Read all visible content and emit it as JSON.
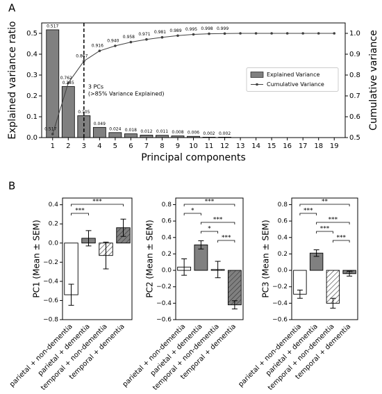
{
  "chart_data": [
    {
      "type": "combo",
      "panel_label": "A",
      "xlabel": "Principal components",
      "ylabel": "Explained variance ratio",
      "y2label": "Cumulative variance",
      "x": [
        1,
        2,
        3,
        4,
        5,
        6,
        7,
        8,
        9,
        10,
        11,
        12,
        13,
        14,
        15,
        16,
        17,
        18,
        19
      ],
      "xlim": [
        0.3,
        19.7
      ],
      "xticks": [
        1,
        2,
        3,
        4,
        5,
        6,
        7,
        8,
        9,
        10,
        11,
        12,
        13,
        14,
        15,
        16,
        17,
        18,
        19
      ],
      "ylim": [
        0,
        0.55
      ],
      "yticks": [
        {
          "value": 0,
          "label": "0.0"
        },
        0.1,
        0.2,
        0.3,
        0.4,
        0.5
      ],
      "y2lim": [
        0.5,
        1.05
      ],
      "y2ticks": [
        0.5,
        0.6,
        0.7,
        0.8,
        0.9,
        {
          "value": 1,
          "label": "1.0"
        }
      ],
      "vline_x": 3,
      "annotations": [
        "3 PCs",
        "(>85% Variance Explained)"
      ],
      "legend": "center right",
      "series": [
        {
          "name": "Explained Variance",
          "type": "bar",
          "color": "#808080",
          "values": [
            0.517,
            0.245,
            0.105,
            0.049,
            0.024,
            0.018,
            0.012,
            0.011,
            0.008,
            0.006,
            0.002,
            0.002,
            0,
            0,
            0,
            0,
            0,
            0,
            0
          ],
          "value_labels": [
            "0.517",
            "0.245",
            "0.105",
            "0.049",
            "0.024",
            "0.018",
            "0.012",
            "0.011",
            "0.008",
            "0.006",
            "0.002",
            "0.002",
            null,
            null,
            null,
            null,
            null,
            null,
            null
          ]
        },
        {
          "name": "Cumulative Variance",
          "type": "line",
          "axis": "y2",
          "color": "#404040",
          "values": [
            0.517,
            0.762,
            0.867,
            0.916,
            0.94,
            0.958,
            0.971,
            0.981,
            0.989,
            0.995,
            0.998,
            0.999,
            1,
            1,
            1,
            1,
            1,
            1,
            1
          ],
          "value_labels": [
            "0.517",
            "0.762",
            "0.867",
            "0.916",
            "0.940",
            "0.958",
            "0.971",
            "0.981",
            "0.989",
            "0.995",
            "0.998",
            "0.999",
            null,
            null,
            null,
            null,
            null,
            null,
            null
          ]
        }
      ]
    },
    {
      "type": "bar",
      "panel_label": "B",
      "ylabel": "PC1 (Mean ± SEM)",
      "categories": [
        "parietal + non-dementia",
        "parietal + dementia",
        "temporal + non-dementia",
        "temporal + dementia"
      ],
      "values": [
        -0.54,
        0.05,
        -0.13,
        0.16
      ],
      "errors": [
        0.11,
        0.08,
        0.14,
        0.09
      ],
      "colors": [
        "#ffffff",
        "#808080",
        "#ffffff",
        "#808080"
      ],
      "hatch": [
        false,
        false,
        true,
        true
      ],
      "ylim": [
        -0.8,
        0.47
      ],
      "yticks": [
        {
          "value": -0.8,
          "label": "−0.8"
        },
        {
          "value": -0.6,
          "label": "−0.6"
        },
        {
          "value": -0.4,
          "label": "−0.4"
        },
        {
          "value": -0.2,
          "label": "−0.2"
        },
        {
          "value": 0,
          "label": "0.0"
        },
        0.2,
        0.4
      ],
      "brackets": [
        {
          "pair": [
            0,
            3
          ],
          "label": "***"
        },
        {
          "pair": [
            0,
            1
          ],
          "label": "***"
        }
      ]
    },
    {
      "type": "bar",
      "ylabel": "PC2 (Mean ± SEM)",
      "categories": [
        "parietal + non-dementia",
        "parietal + dementia",
        "temporal + non-dementia",
        "temporal + dementia"
      ],
      "values": [
        0.04,
        0.31,
        0.01,
        -0.42
      ],
      "errors": [
        0.1,
        0.05,
        0.1,
        0.05
      ],
      "colors": [
        "#ffffff",
        "#808080",
        "#ffffff",
        "#808080"
      ],
      "hatch": [
        false,
        false,
        true,
        true
      ],
      "ylim": [
        -0.6,
        0.88
      ],
      "yticks": [
        {
          "value": -0.6,
          "label": "−0.6"
        },
        {
          "value": -0.4,
          "label": "−0.4"
        },
        {
          "value": -0.2,
          "label": "−0.2"
        },
        {
          "value": 0,
          "label": "0.0"
        },
        0.2,
        0.4,
        0.6,
        0.8
      ],
      "brackets": [
        {
          "pair": [
            0,
            3
          ],
          "label": "***"
        },
        {
          "pair": [
            0,
            1
          ],
          "label": "*"
        },
        {
          "pair": [
            1,
            3
          ],
          "label": "***"
        },
        {
          "pair": [
            1,
            2
          ],
          "label": "*"
        },
        {
          "pair": [
            2,
            3
          ],
          "label": "***"
        }
      ]
    },
    {
      "type": "bar",
      "ylabel": "PC3 (Mean ± SEM)",
      "categories": [
        "parietal + non-dementia",
        "parietal + dementia",
        "temporal + non-dementia",
        "temporal + dementia"
      ],
      "values": [
        -0.29,
        0.21,
        -0.4,
        -0.04
      ],
      "errors": [
        0.05,
        0.04,
        0.06,
        0.03
      ],
      "colors": [
        "#ffffff",
        "#808080",
        "#ffffff",
        "#808080"
      ],
      "hatch": [
        false,
        false,
        true,
        true
      ],
      "ylim": [
        -0.6,
        0.88
      ],
      "yticks": [
        {
          "value": -0.6,
          "label": "−0.6"
        },
        {
          "value": -0.4,
          "label": "−0.4"
        },
        {
          "value": -0.2,
          "label": "−0.2"
        },
        {
          "value": 0,
          "label": "0.0"
        },
        0.2,
        0.4,
        0.6,
        0.8
      ],
      "brackets": [
        {
          "pair": [
            0,
            3
          ],
          "label": "**"
        },
        {
          "pair": [
            0,
            1
          ],
          "label": "***"
        },
        {
          "pair": [
            1,
            3
          ],
          "label": "***"
        },
        {
          "pair": [
            1,
            2
          ],
          "label": "***"
        },
        {
          "pair": [
            2,
            3
          ],
          "label": "***"
        }
      ]
    }
  ]
}
